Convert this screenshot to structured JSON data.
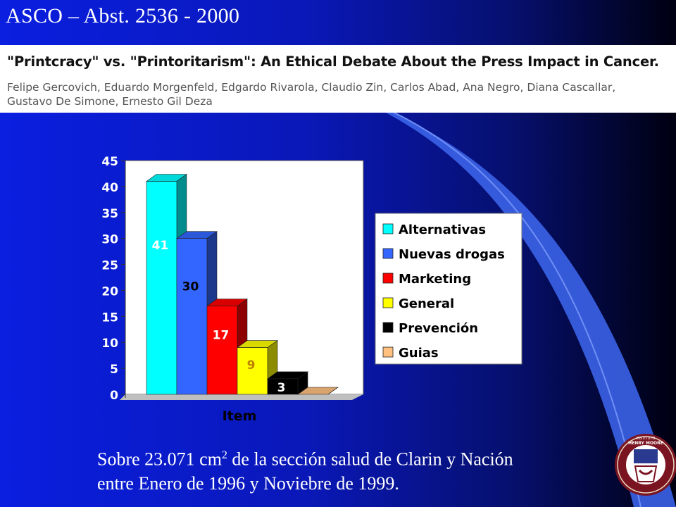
{
  "slide": {
    "title": "ASCO – Abst. 2536 - 2000",
    "paper_title": "\"Printcracy\" vs. \"Printoritarism\": An Ethical Debate About the Press Impact in Cancer.",
    "authors": "Felipe Gercovich, Eduardo Morgenfeld, Edgardo Rivarola, Claudio Zin, Carlos Abad, Ana Negro, Diana Cascallar, Gustavo De Simone, Ernesto Gil Deza",
    "caption_line1_a": "Sobre 23.071 cm",
    "caption_line1_sup": "2",
    "caption_line1_b": " de la sección salud de Clarin y Nación",
    "caption_line2": "entre Enero de 1996 y Noviebre de 1999.",
    "seal_text_top": "INSTITUTO",
    "seal_text_name": "HENRY MOORE"
  },
  "chart_data": {
    "type": "bar",
    "categories": [
      "Item"
    ],
    "series": [
      {
        "name": "Alternativas",
        "values": [
          41
        ],
        "color": "#00ffff"
      },
      {
        "name": "Nuevas drogas",
        "values": [
          30
        ],
        "color": "#3366ff"
      },
      {
        "name": "Marketing",
        "values": [
          17
        ],
        "color": "#ff0000"
      },
      {
        "name": "General",
        "values": [
          9
        ],
        "color": "#ffff00"
      },
      {
        "name": "Prevención",
        "values": [
          3
        ],
        "color": "#000000"
      },
      {
        "name": "Guias",
        "values": [
          0
        ],
        "color": "#ffc080"
      }
    ],
    "data_labels": [
      "41",
      "30",
      "17",
      "9",
      "3",
      ""
    ],
    "xlabel": "Item",
    "ylabel": "",
    "ylim": [
      0,
      45
    ],
    "yticks": [
      "0",
      "5",
      "10",
      "15",
      "20",
      "25",
      "30",
      "35",
      "40",
      "45"
    ],
    "legend": "right",
    "grid": false
  }
}
